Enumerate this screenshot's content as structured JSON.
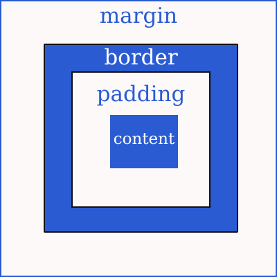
{
  "labels": {
    "margin": "margin",
    "border": "border",
    "padding": "padding",
    "content": "content"
  },
  "colors": {
    "accent_blue": "#2a5bd3",
    "background": "#fdf9f9",
    "outline": "#111111",
    "inverse_text": "#ffffff"
  }
}
